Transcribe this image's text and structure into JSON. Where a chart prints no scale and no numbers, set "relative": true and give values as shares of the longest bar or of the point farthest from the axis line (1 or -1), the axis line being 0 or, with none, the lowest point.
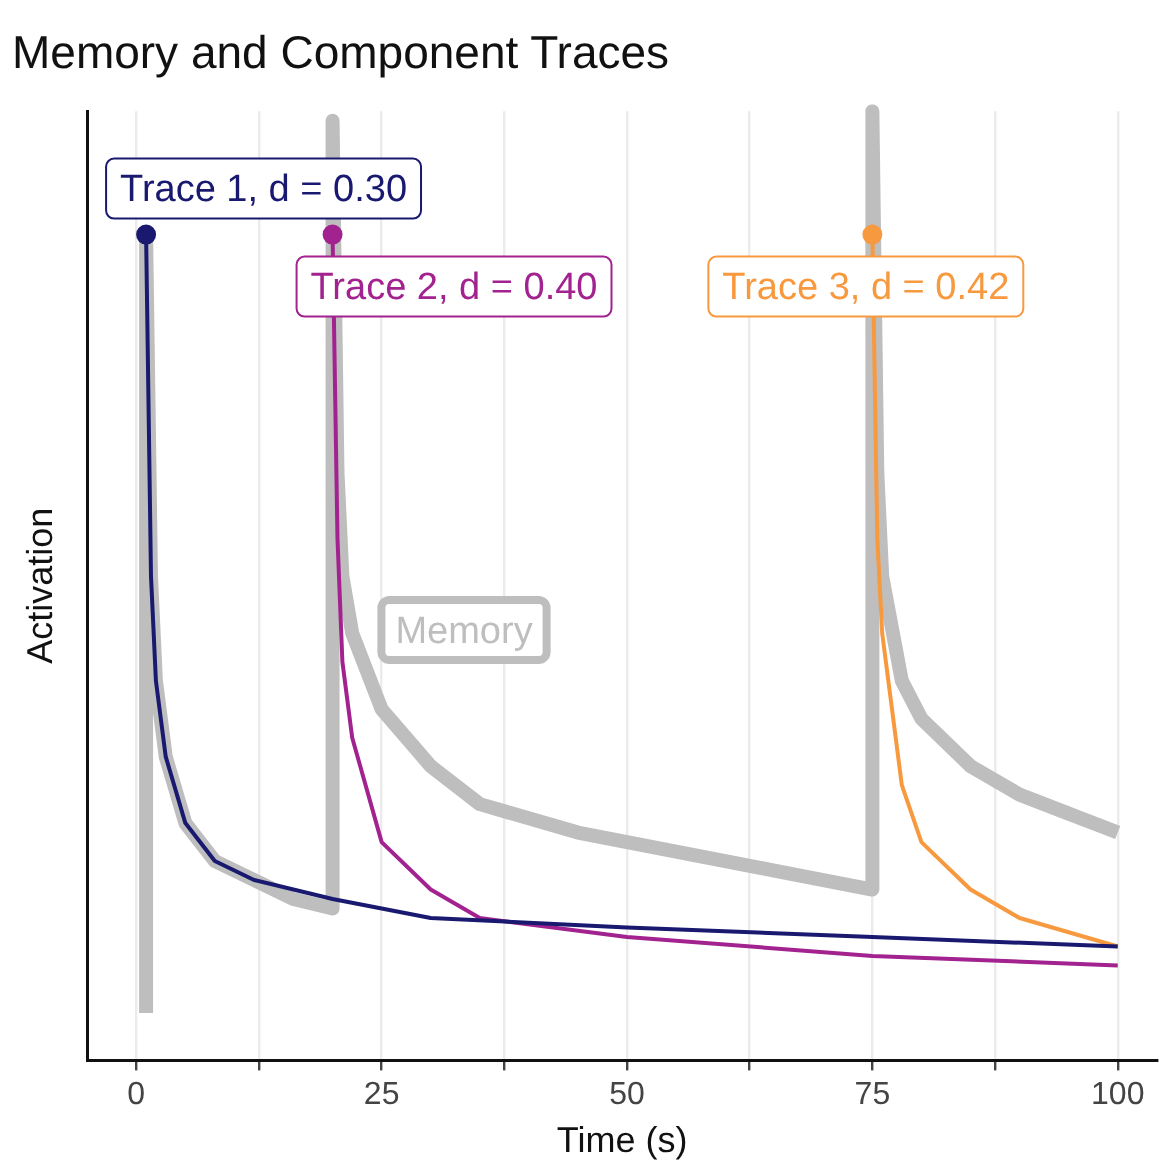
{
  "chart_data": {
    "type": "line",
    "title": "Memory and Component Traces",
    "xlabel": "Time (s)",
    "ylabel": "Activation",
    "relative": true,
    "xlim": [
      -5,
      104
    ],
    "xticks": [
      0,
      {
        "value": 12.5,
        "label": null
      },
      25,
      {
        "value": 37.5,
        "label": null
      },
      50,
      {
        "value": 62.5,
        "label": null
      },
      75,
      {
        "value": 87.5,
        "label": null
      },
      100
    ],
    "grid": true,
    "legend": false,
    "marker": "none",
    "series": [
      {
        "name": "Memory",
        "color": "#bebebe",
        "x": [
          1,
          1,
          1.5,
          2,
          3,
          5,
          8,
          12,
          16,
          20,
          20,
          20.5,
          21,
          22,
          25,
          30,
          35,
          45,
          55,
          65,
          75,
          75,
          75.5,
          76,
          78,
          80,
          85,
          90,
          95,
          100
        ],
        "values": [
          0.05,
          0.87,
          0.51,
          0.4,
          0.32,
          0.25,
          0.21,
          0.19,
          0.17,
          0.16,
          0.99,
          0.62,
          0.51,
          0.45,
          0.37,
          0.31,
          0.27,
          0.24,
          0.22,
          0.2,
          0.18,
          1,
          0.62,
          0.51,
          0.4,
          0.36,
          0.31,
          0.28,
          0.26,
          0.24
        ]
      },
      {
        "name": "Trace 1, d = 0.30",
        "color": "#191970",
        "x": [
          1,
          1.5,
          2,
          3,
          5,
          8,
          12,
          20,
          30,
          50,
          75,
          100
        ],
        "values": [
          0.87,
          0.51,
          0.4,
          0.32,
          0.25,
          0.21,
          0.19,
          0.17,
          0.15,
          0.14,
          0.13,
          0.12
        ]
      },
      {
        "name": "Trace 2, d = 0.40",
        "color": "#a2238f",
        "x": [
          20,
          20.5,
          21,
          22,
          25,
          30,
          35,
          50,
          75,
          100
        ],
        "values": [
          0.87,
          0.55,
          0.42,
          0.34,
          0.23,
          0.18,
          0.15,
          0.13,
          0.11,
          0.1
        ]
      },
      {
        "name": "Trace 3, d = 0.42",
        "color": "#f7993f",
        "x": [
          75,
          75.5,
          76,
          78,
          80,
          85,
          90,
          100
        ],
        "values": [
          0.87,
          0.55,
          0.45,
          0.29,
          0.23,
          0.18,
          0.15,
          0.12
        ]
      },
      {
        "type": "scatter",
        "marker": "circle",
        "color": "#191970",
        "x": [
          1
        ],
        "values": [
          0.87
        ]
      },
      {
        "type": "scatter",
        "marker": "circle",
        "color": "#a2238f",
        "x": [
          20
        ],
        "values": [
          0.87
        ]
      },
      {
        "type": "scatter",
        "marker": "circle",
        "color": "#f7993f",
        "x": [
          75
        ],
        "values": [
          0.87
        ]
      }
    ]
  }
}
